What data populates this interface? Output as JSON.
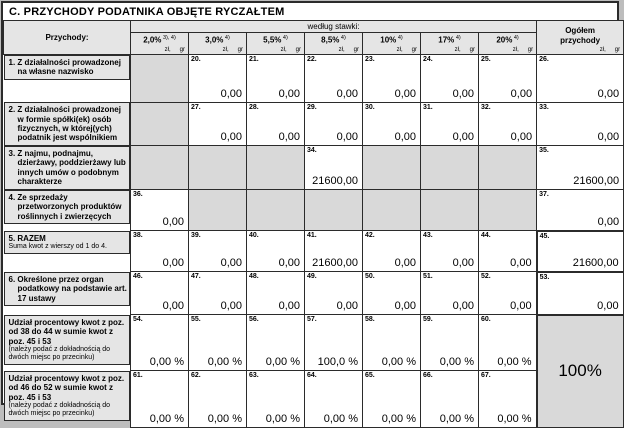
{
  "title": "C. PRZYCHODY PODATNIKA OBJĘTE RYCZAŁTEM",
  "header": {
    "income_label": "Przychody:",
    "by_rate_label": "według stawki:",
    "total_label_line1": "Ogółem",
    "total_label_line2": "przychody",
    "unit_zl": "zł,",
    "unit_gr": "gr",
    "rates": [
      {
        "label": "2,0%",
        "sup": "3), 4)"
      },
      {
        "label": "3,0%",
        "sup": "4)"
      },
      {
        "label": "5,5%",
        "sup": "4)"
      },
      {
        "label": "8,5%",
        "sup": "4)"
      },
      {
        "label": "10%",
        "sup": "4)"
      },
      {
        "label": "17%",
        "sup": "4)"
      },
      {
        "label": "20%",
        "sup": "4)"
      }
    ]
  },
  "colors": {
    "grid": "#2b2b2b",
    "header_bg": "#e5e5e5",
    "disabled_bg": "#d9d9d9"
  },
  "rows": [
    {
      "label": "1. Z działalności prowadzonej na własne nazwisko",
      "note": "",
      "cells": [
        {
          "disabled": true
        },
        {
          "num": "20.",
          "value": "0,00"
        },
        {
          "num": "21.",
          "value": "0,00"
        },
        {
          "num": "22.",
          "value": "0,00"
        },
        {
          "num": "23.",
          "value": "0,00"
        },
        {
          "num": "24.",
          "value": "0,00"
        },
        {
          "num": "25.",
          "value": "0,00"
        },
        {
          "num": "26.",
          "value": "0,00"
        }
      ]
    },
    {
      "label": "2. Z działalności prowadzonej w formie spółki(ek) osób fizycznych, w której(ych) podatnik jest wspólnikiem",
      "note": "",
      "cells": [
        {
          "disabled": true
        },
        {
          "num": "27.",
          "value": "0,00"
        },
        {
          "num": "28.",
          "value": "0,00"
        },
        {
          "num": "29.",
          "value": "0,00"
        },
        {
          "num": "30.",
          "value": "0,00"
        },
        {
          "num": "31.",
          "value": "0,00"
        },
        {
          "num": "32.",
          "value": "0,00"
        },
        {
          "num": "33.",
          "value": "0,00"
        }
      ]
    },
    {
      "label": "3. Z najmu, podnajmu, dzierżawy, poddzierżawy lub innych umów o podobnym charakterze",
      "note": "",
      "cells": [
        {
          "disabled": true
        },
        {
          "disabled": true
        },
        {
          "disabled": true
        },
        {
          "num": "34.",
          "value": "21600,00"
        },
        {
          "disabled": true
        },
        {
          "disabled": true
        },
        {
          "disabled": true
        },
        {
          "num": "35.",
          "value": "21600,00"
        }
      ]
    },
    {
      "label": "4. Ze sprzedaży przetworzonych produktów roślinnych i zwierzęcych",
      "note": "",
      "cells": [
        {
          "num": "36.",
          "value": "0,00"
        },
        {
          "disabled": true
        },
        {
          "disabled": true
        },
        {
          "disabled": true
        },
        {
          "disabled": true
        },
        {
          "disabled": true
        },
        {
          "disabled": true
        },
        {
          "num": "37.",
          "value": "0,00"
        }
      ]
    },
    {
      "label": "5. RAZEM",
      "note": "Suma kwot z wierszy od 1 do 4.",
      "cells": [
        {
          "num": "38.",
          "value": "0,00"
        },
        {
          "num": "39.",
          "value": "0,00"
        },
        {
          "num": "40.",
          "value": "0,00"
        },
        {
          "num": "41.",
          "value": "21600,00"
        },
        {
          "num": "42.",
          "value": "0,00"
        },
        {
          "num": "43.",
          "value": "0,00"
        },
        {
          "num": "44.",
          "value": "0,00"
        },
        {
          "num": "45.",
          "value": "21600,00",
          "thick": true
        }
      ]
    },
    {
      "label": "6. Określone przez organ podatkowy na podstawie art. 17 ustawy",
      "note": "",
      "cells": [
        {
          "num": "46.",
          "value": "0,00"
        },
        {
          "num": "47.",
          "value": "0,00"
        },
        {
          "num": "48.",
          "value": "0,00"
        },
        {
          "num": "49.",
          "value": "0,00"
        },
        {
          "num": "50.",
          "value": "0,00"
        },
        {
          "num": "51.",
          "value": "0,00"
        },
        {
          "num": "52.",
          "value": "0,00"
        },
        {
          "num": "53.",
          "value": "0,00",
          "thick": true
        }
      ]
    },
    {
      "label": "Udział procentowy kwot z poz. od 38 do 44 w sumie kwot z poz. 45 i 53",
      "note": "(należy podać z dokładnością do dwóch miejsc po przecinku)",
      "cells": [
        {
          "num": "54.",
          "value": "0,00 %"
        },
        {
          "num": "55.",
          "value": "0,00 %"
        },
        {
          "num": "56.",
          "value": "0,00 %"
        },
        {
          "num": "57.",
          "value": "100,0 %"
        },
        {
          "num": "58.",
          "value": "0,00 %"
        },
        {
          "num": "59.",
          "value": "0,00 %"
        },
        {
          "num": "60.",
          "value": "0,00 %"
        },
        {
          "grand": true,
          "value": "100%"
        }
      ]
    },
    {
      "label": "Udział procentowy kwot z poz. od 46 do 52 w sumie kwot z poz. 45 i 53",
      "note": "(należy podać z dokładnością do dwóch miejsc po przecinku)",
      "cells": [
        {
          "num": "61.",
          "value": "0,00 %"
        },
        {
          "num": "62.",
          "value": "0,00 %"
        },
        {
          "num": "63.",
          "value": "0,00 %"
        },
        {
          "num": "64.",
          "value": "0,00 %"
        },
        {
          "num": "65.",
          "value": "0,00 %"
        },
        {
          "num": "66.",
          "value": "0,00 %"
        },
        {
          "num": "67.",
          "value": "0,00 %"
        }
      ]
    }
  ]
}
